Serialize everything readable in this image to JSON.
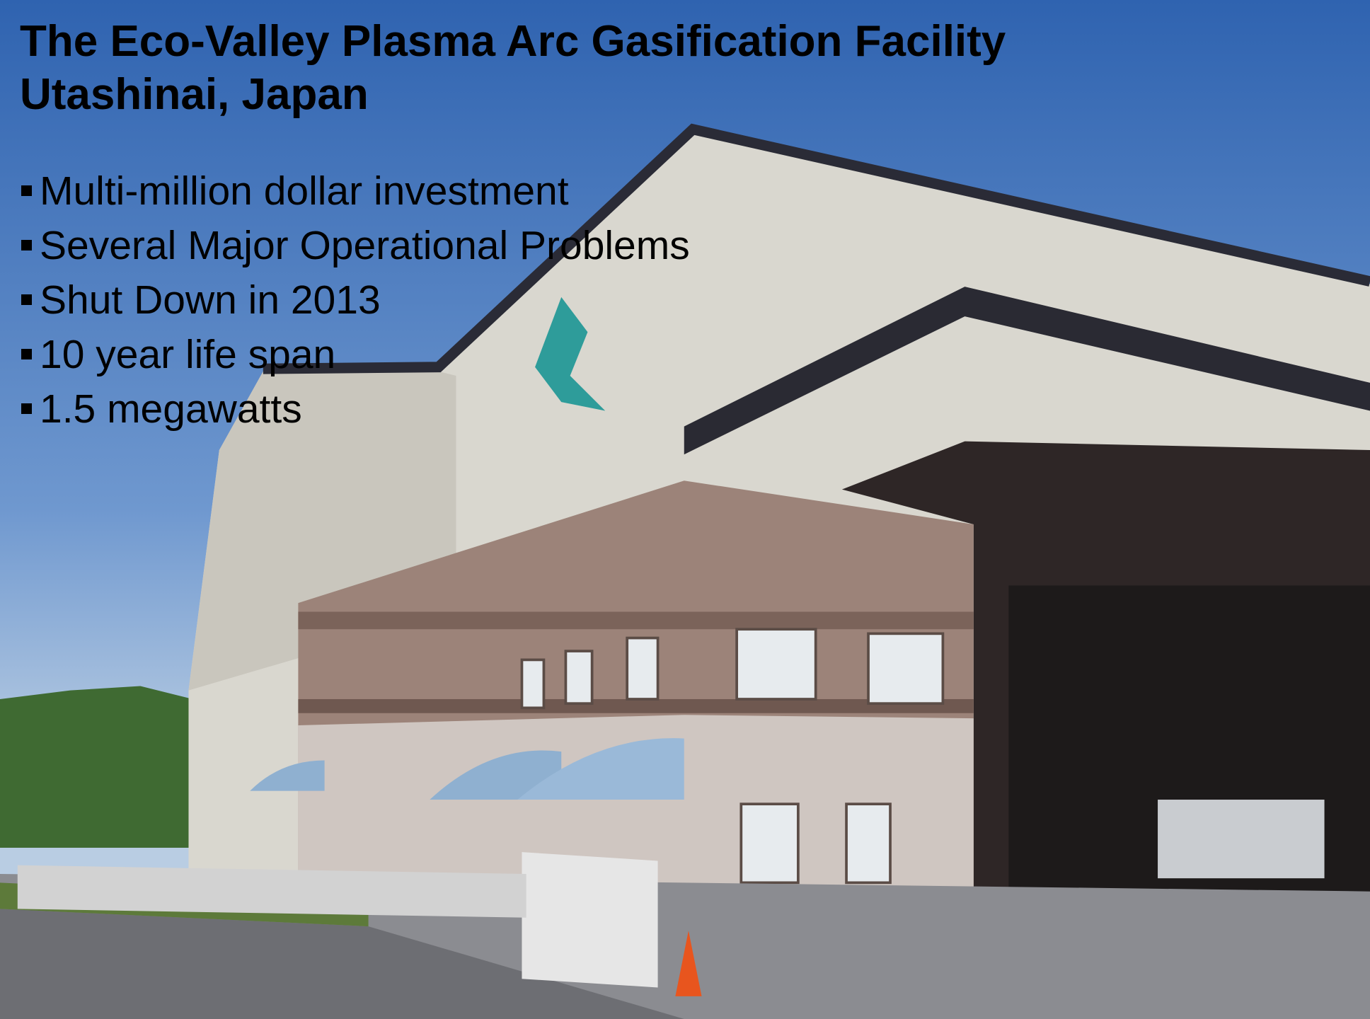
{
  "header": {
    "title": "The Eco-Valley Plasma Arc Gasification Facility",
    "subtitle": "Utashinai, Japan"
  },
  "bullets": [
    "Multi-million dollar investment",
    "Several Major Operational Problems",
    "Shut Down in 2013",
    "10 year life span",
    "1.5 megawatts"
  ]
}
